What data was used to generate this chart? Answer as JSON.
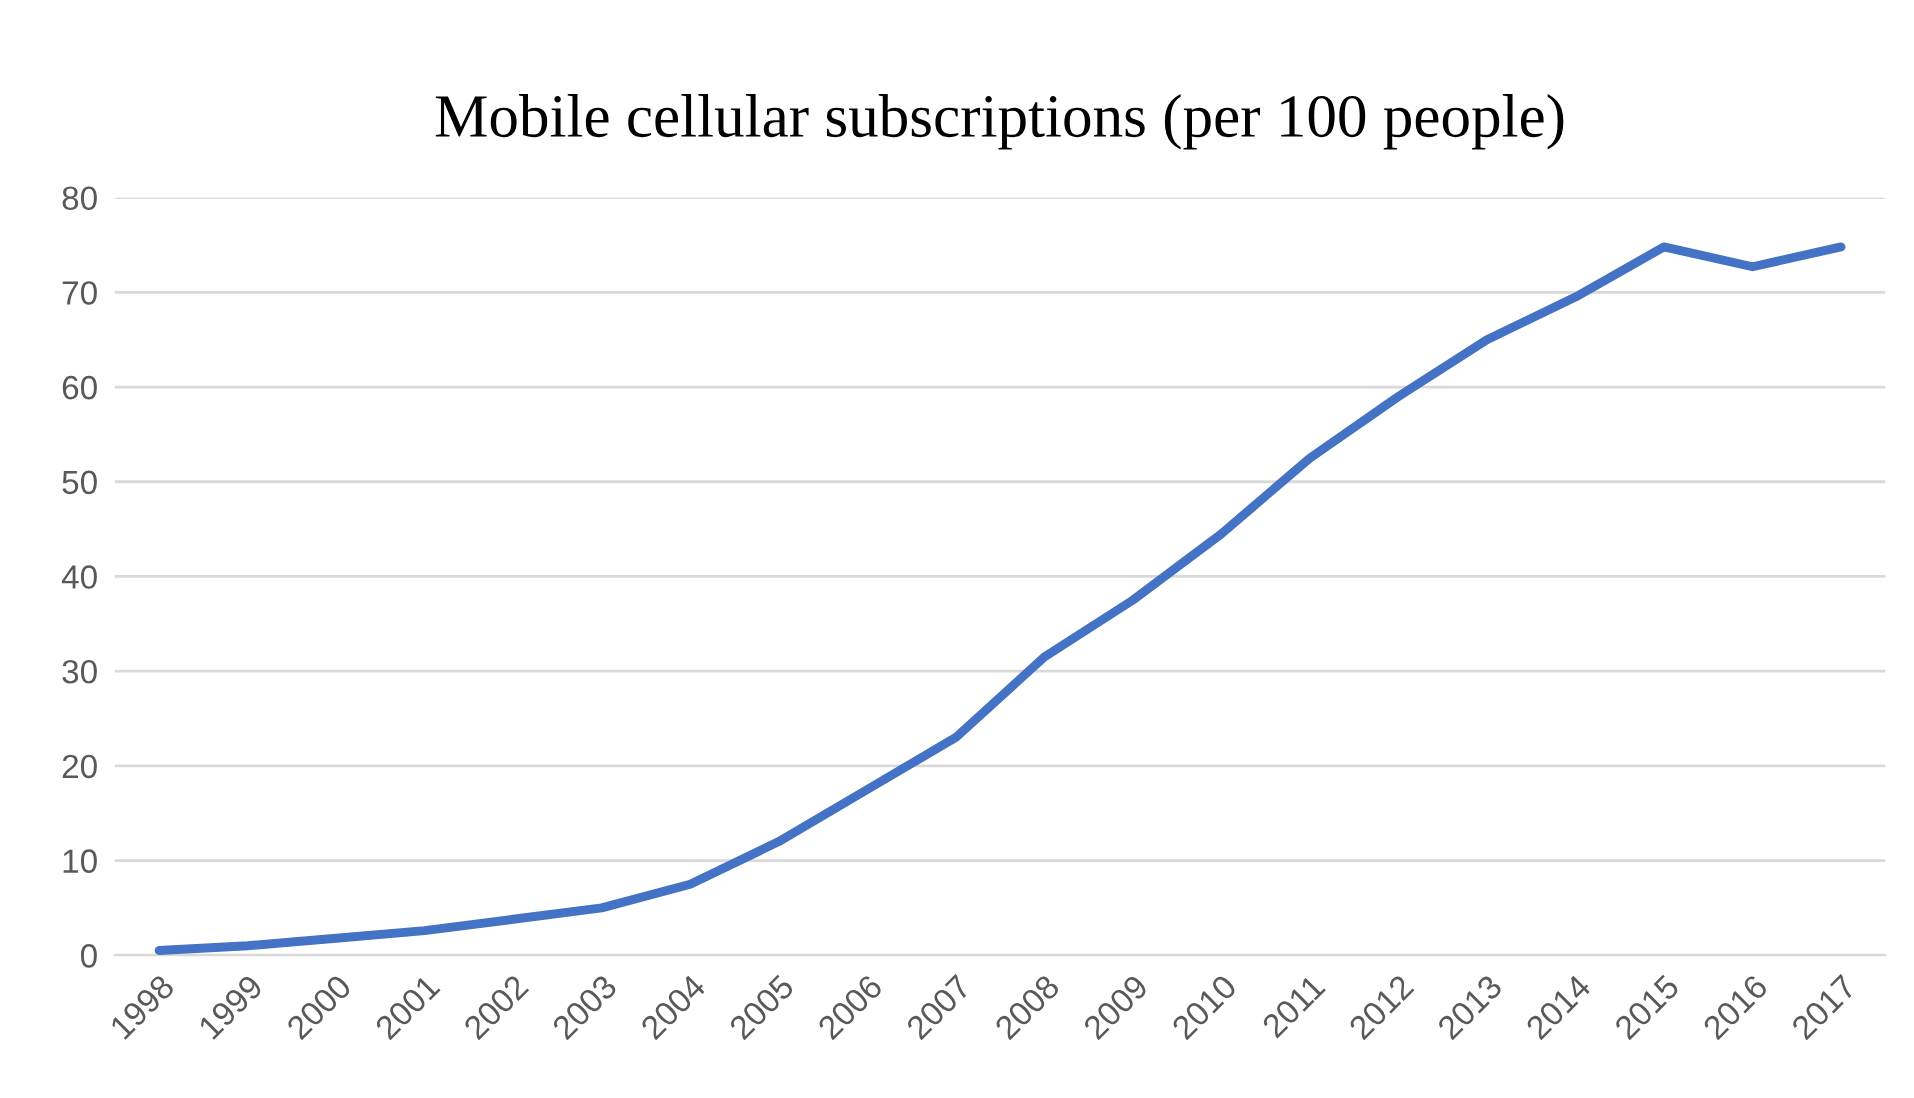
{
  "chart_data": {
    "type": "line",
    "title": "Mobile cellular subscriptions (per 100 people)",
    "categories": [
      "1998",
      "1999",
      "2000",
      "2001",
      "2002",
      "2003",
      "2004",
      "2005",
      "2006",
      "2007",
      "2008",
      "2009",
      "2010",
      "2011",
      "2012",
      "2013",
      "2014",
      "2015",
      "2016",
      "2017"
    ],
    "series": [
      {
        "color": "#4472c4",
        "values": [
          0.5,
          1,
          1.8,
          2.6,
          3.8,
          5,
          7.5,
          12,
          17.5,
          23,
          31.5,
          37.5,
          44.5,
          52.5,
          59,
          65,
          69.5,
          74.8,
          72.7,
          74.8
        ]
      }
    ],
    "ylim": [
      0,
      80
    ],
    "yticks": [
      0,
      10,
      20,
      30,
      40,
      50,
      60,
      70,
      80
    ],
    "grid": "y",
    "legend": false,
    "marker": "none",
    "line_style": "solid"
  }
}
